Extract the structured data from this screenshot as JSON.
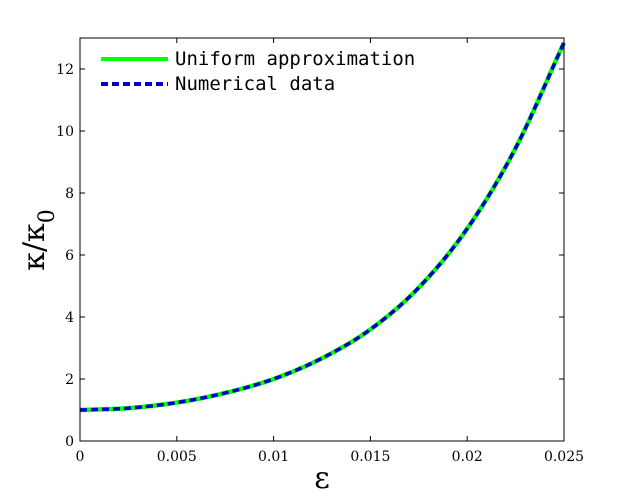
{
  "chart_data": {
    "type": "line",
    "xlabel": "ε",
    "ylabel_main": "κ/κ",
    "ylabel_sub": "0",
    "xlim": [
      0,
      0.025
    ],
    "ylim": [
      0,
      13
    ],
    "grid": false,
    "legend_position": "top-left",
    "x_ticks": [
      "0",
      "0.005",
      "0.01",
      "0.015",
      "0.02",
      "0.025"
    ],
    "x_tick_values": [
      0,
      0.005,
      0.01,
      0.015,
      0.02,
      0.025
    ],
    "y_ticks": [
      "0",
      "2",
      "4",
      "6",
      "8",
      "10",
      "12"
    ],
    "y_tick_values": [
      0,
      2,
      4,
      6,
      8,
      10,
      12
    ],
    "series": [
      {
        "name": "Uniform approximation",
        "color": "#00ff00",
        "style": "solid",
        "x": [
          0,
          0.0025,
          0.005,
          0.0075,
          0.01,
          0.0125,
          0.015,
          0.0175,
          0.02,
          0.0225,
          0.025
        ],
        "y": [
          1.0,
          1.06,
          1.24,
          1.55,
          2.0,
          2.67,
          3.6,
          4.95,
          6.85,
          9.45,
          12.85
        ]
      },
      {
        "name": "Numerical data",
        "color": "#0000cc",
        "style": "dashed",
        "x": [
          0,
          0.0025,
          0.005,
          0.0075,
          0.01,
          0.0125,
          0.015,
          0.0175,
          0.02,
          0.0225,
          0.025
        ],
        "y": [
          1.0,
          1.06,
          1.24,
          1.55,
          2.0,
          2.67,
          3.6,
          4.95,
          6.85,
          9.45,
          12.85
        ]
      }
    ]
  }
}
